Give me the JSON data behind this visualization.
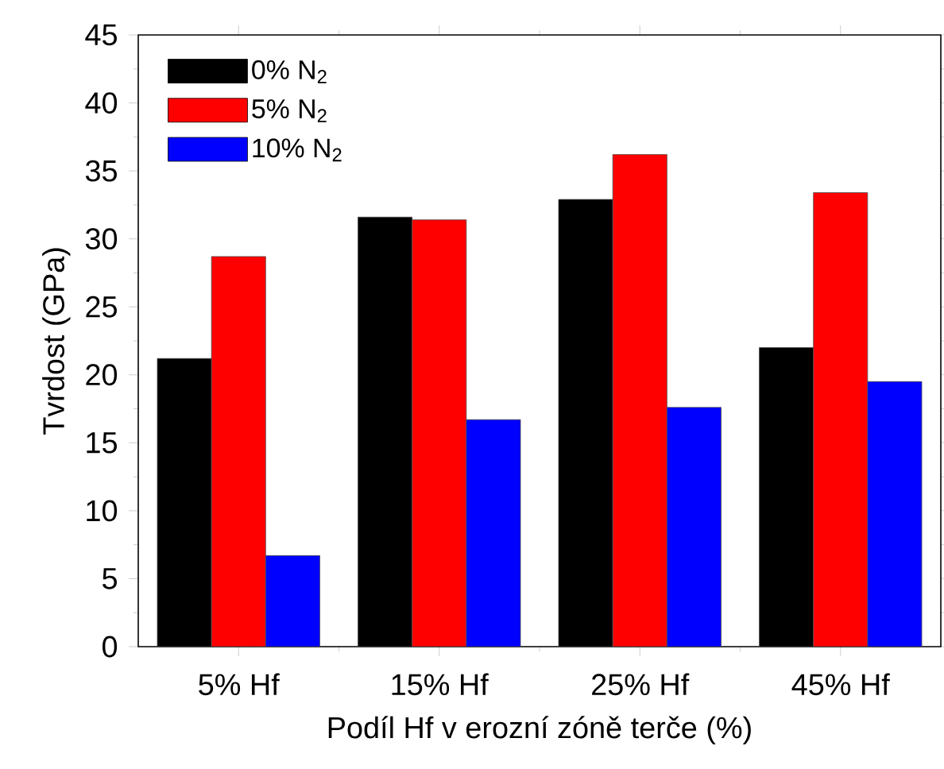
{
  "chart_data": {
    "type": "bar",
    "xlabel": "Podíl Hf v erozní zóně terče (%)",
    "ylabel": "Tvrdost (GPa)",
    "categories": [
      "5% Hf",
      "15% Hf",
      "25% Hf",
      "45% Hf"
    ],
    "series": [
      {
        "name": "0% N$_{2}$",
        "color": "#000000",
        "values": [
          21.2,
          31.6,
          32.9,
          22.0
        ]
      },
      {
        "name": "5% N$_{2}$",
        "color": "#ff0000",
        "values": [
          28.7,
          31.4,
          36.2,
          33.4
        ]
      },
      {
        "name": "10% N$_{2}$",
        "color": "#0000ff",
        "values": [
          6.7,
          16.7,
          17.6,
          19.5
        ]
      }
    ],
    "ylim": [
      0,
      45
    ],
    "yticks": [
      0,
      5,
      10,
      15,
      20,
      25,
      30,
      35,
      40,
      45
    ],
    "legend": "top left"
  }
}
